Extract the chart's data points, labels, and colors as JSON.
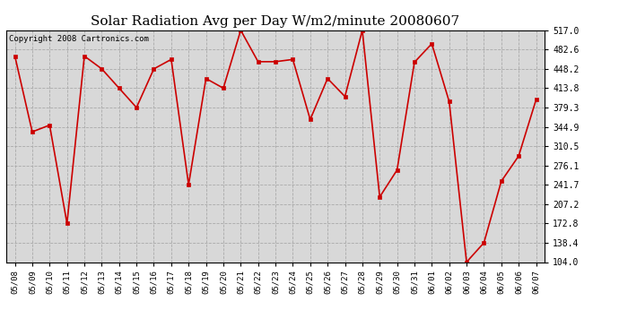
{
  "title": "Solar Radiation Avg per Day W/m2/minute 20080607",
  "copyright": "Copyright 2008 Cartronics.com",
  "dates": [
    "05/08",
    "05/09",
    "05/10",
    "05/11",
    "05/12",
    "05/13",
    "05/14",
    "05/15",
    "05/16",
    "05/17",
    "05/18",
    "05/19",
    "05/20",
    "05/21",
    "05/22",
    "05/23",
    "05/24",
    "05/25",
    "05/26",
    "05/27",
    "05/28",
    "05/29",
    "05/30",
    "05/31",
    "06/01",
    "06/02",
    "06/03",
    "06/04",
    "06/05",
    "06/06",
    "06/07"
  ],
  "values": [
    471.0,
    336.0,
    348.0,
    172.8,
    471.0,
    448.2,
    413.8,
    379.3,
    448.2,
    465.0,
    241.7,
    431.0,
    413.8,
    517.0,
    461.0,
    461.0,
    465.0,
    358.0,
    431.0,
    399.0,
    517.0,
    220.0,
    268.0,
    460.0,
    493.0,
    390.0,
    104.0,
    138.4,
    248.0,
    293.0,
    393.0
  ],
  "line_color": "#cc0000",
  "marker_color": "#cc0000",
  "bg_color": "#d8d8d8",
  "grid_color": "#aaaaaa",
  "ylim_min": 104.0,
  "ylim_max": 517.0,
  "yticks": [
    517.0,
    482.6,
    448.2,
    413.8,
    379.3,
    344.9,
    310.5,
    276.1,
    241.7,
    207.2,
    172.8,
    138.4,
    104.0
  ],
  "title_fontsize": 11,
  "copyright_fontsize": 6.5,
  "tick_fontsize": 6.5,
  "ytick_fontsize": 7
}
